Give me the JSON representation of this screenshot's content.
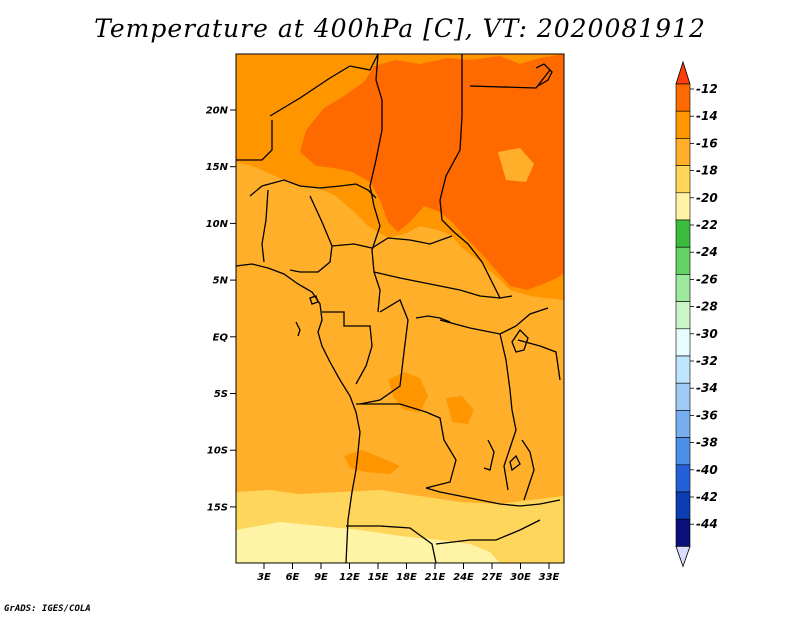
{
  "title": "Temperature at 400hPa [C], VT: 2020081912",
  "credit": "GrADS: IGES/COLA",
  "map": {
    "y_ticks": [
      "20N",
      "15N",
      "10N",
      "5N",
      "EQ",
      "5S",
      "10S",
      "15S"
    ],
    "x_ticks": [
      "3E",
      "6E",
      "9E",
      "12E",
      "15E",
      "18E",
      "21E",
      "24E",
      "27E",
      "30E",
      "33E"
    ]
  },
  "legend": {
    "labels": [
      "-12",
      "-14",
      "-16",
      "-18",
      "-20",
      "-22",
      "-24",
      "-26",
      "-28",
      "-30",
      "-32",
      "-34",
      "-36",
      "-38",
      "-40",
      "-42",
      "-44"
    ],
    "colors": [
      "#ff6a00",
      "#ff9600",
      "#ffaf2a",
      "#ffd65c",
      "#fff4a6",
      "#3cbc3d",
      "#64d264",
      "#9de99e",
      "#c9f5c8",
      "#e8fbff",
      "#bfe4ff",
      "#9ecbf5",
      "#78aef0",
      "#4a8fe8",
      "#2460d6",
      "#0d3db3",
      "#0a0f7a"
    ],
    "top_arrow_color": "#ff3c0e",
    "bottom_arrow_color": "#dcdcff"
  },
  "fill_colors": {
    "warmest": "#ff6a00",
    "warm": "#ff9600",
    "mid": "#ffaf2a",
    "light": "#ffd65c",
    "pale": "#fff4a6"
  }
}
